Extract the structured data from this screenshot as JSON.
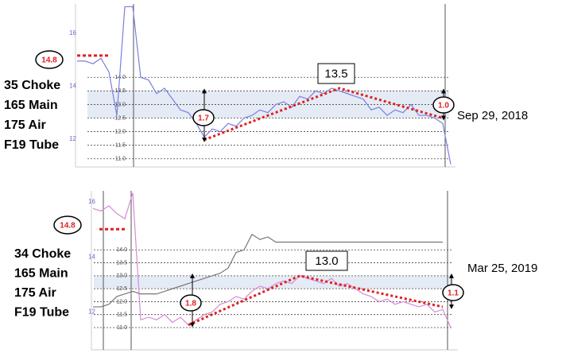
{
  "chart_data": [
    {
      "type": "line",
      "ylim": [
        10.7,
        16.7
      ],
      "yticks": [
        {
          "value": 11,
          "label": "11.0"
        },
        11.5,
        {
          "value": 12,
          "label": "12.0"
        },
        12.5,
        {
          "value": 13,
          "label": "13.0"
        },
        13.5,
        {
          "value": 14,
          "label": "14.0"
        }
      ],
      "y2lim": [
        10.95,
        17.1
      ],
      "y2ticks": [
        12,
        14,
        16
      ],
      "grid": true,
      "band": [
        12.5,
        13.5
      ],
      "series": [
        {
          "color": "#7b7fe0",
          "values": [
            14.6,
            14.6,
            14.5,
            14.7,
            14.2,
            12.6,
            16.6,
            16.6,
            14.0,
            13.9,
            13.4,
            13.6,
            13.2,
            12.8,
            12.7,
            12.3,
            11.8,
            12.1,
            12.0,
            12.3,
            12.2,
            12.5,
            12.6,
            12.8,
            12.7,
            13.0,
            13.1,
            12.9,
            13.3,
            13.2,
            13.5,
            13.4,
            13.6,
            13.5,
            13.4,
            13.3,
            13.2,
            12.8,
            12.9,
            12.6,
            12.8,
            12.7,
            13.0,
            12.6,
            12.6,
            12.5,
            12.3,
            10.8
          ]
        }
      ],
      "trend": {
        "x": [
          16,
          33,
          46
        ],
        "values": [
          11.7,
          13.6,
          12.5
        ],
        "color": "#e02020"
      },
      "marker": 14.8,
      "peak": 13.5,
      "gaps": [
        1.7,
        {
          "value": 1,
          "label": "1.0"
        }
      ],
      "setup": [
        "35 Choke",
        "165 Main",
        "175 Air",
        "F19 Tube"
      ],
      "date": "Sep 29, 2018"
    },
    {
      "type": "line",
      "ylim": [
        10.14,
        16.28
      ],
      "yticks": [
        {
          "value": 11,
          "label": "11.0"
        },
        11.5,
        {
          "value": 12,
          "label": "12.0"
        },
        12.5,
        {
          "value": 13,
          "label": "13.0"
        },
        13.5,
        {
          "value": 14,
          "label": "14.0"
        }
      ],
      "y2lim": [
        10.63,
        16.4
      ],
      "y2ticks": [
        12,
        14,
        16
      ],
      "grid": true,
      "band": [
        12.5,
        13
      ],
      "series": [
        {
          "color": "#d68ad6",
          "values": [
            15.6,
            15.5,
            15.7,
            15.4,
            15.2,
            16.2,
            11.3,
            11.4,
            11.3,
            11.5,
            11.2,
            11.4,
            11.1,
            11.3,
            11.5,
            11.6,
            11.9,
            12.0,
            12.2,
            12.1,
            12.4,
            12.6,
            12.5,
            12.7,
            12.8,
            12.7,
            13.0,
            12.9,
            12.8,
            12.7,
            12.9,
            12.6,
            12.7,
            12.5,
            12.3,
            12.2,
            12.0,
            12.1,
            11.9,
            12.0,
            11.9,
            11.8,
            11.9,
            11.6,
            11.7,
            11.0
          ]
        },
        {
          "color": "#777777",
          "values": [
            11.8,
            11.8,
            11.9,
            12.2,
            12.3,
            12.4,
            12.3,
            12.3,
            12.3,
            12.4,
            12.5,
            12.6,
            12.7,
            12.8,
            12.9,
            13.0,
            13.1,
            13.3,
            13.9,
            14.0,
            14.6,
            14.4,
            14.5,
            14.3,
            14.3,
            14.3,
            14.3,
            14.3,
            14.3,
            14.3,
            14.3,
            14.3,
            14.3,
            14.3,
            14.3,
            14.3,
            14.3,
            14.3,
            14.3,
            14.3,
            14.3,
            14.3,
            14.3,
            14.3,
            14.3,
            null
          ]
        }
      ],
      "trend": {
        "x": [
          12,
          26,
          44
        ],
        "values": [
          11.1,
          13.0,
          11.8
        ],
        "color": "#e02020"
      },
      "marker": 14.8,
      "peak": {
        "value": 13,
        "label": "13.0"
      },
      "gaps": [
        1.8,
        1.1
      ],
      "setup": [
        "34 Choke",
        "165 Main",
        "175 Air",
        "F19 Tube"
      ],
      "date": "Mar 25, 2019"
    }
  ]
}
